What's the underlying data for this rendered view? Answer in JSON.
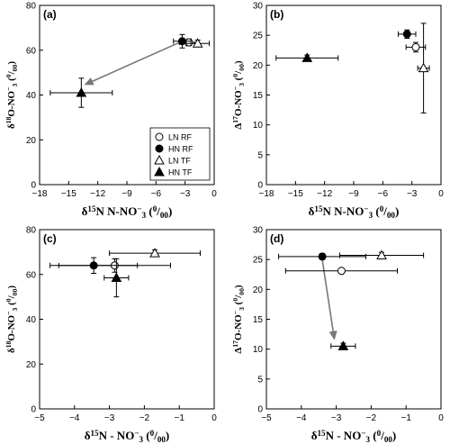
{
  "legend": {
    "entries": [
      {
        "key": "LN_RF",
        "label": "LN RF",
        "marker": "circle",
        "fill": "open"
      },
      {
        "key": "HN_RF",
        "label": "HN RF",
        "marker": "circle",
        "fill": "filled"
      },
      {
        "key": "LN_TF",
        "label": "LN TF",
        "marker": "triangle",
        "fill": "open"
      },
      {
        "key": "HN_TF",
        "label": "HN TF",
        "marker": "triangle",
        "fill": "filled"
      }
    ]
  },
  "chart_data": [
    {
      "panel": "(a)",
      "type": "scatter",
      "xlabel": "δ15N N-NO−3 (0/00)",
      "ylabel": "δ18O-NO−3 (0/00)",
      "xlim": [
        -18,
        0
      ],
      "ylim": [
        0,
        80
      ],
      "xticks": [
        -18,
        -15,
        -12,
        -9,
        -6,
        -3,
        0
      ],
      "yticks": [
        0,
        20,
        40,
        60,
        80
      ],
      "series": [
        {
          "name": "LN RF",
          "x": -2.6,
          "y": 63.5,
          "xerr": 1.0,
          "yerr": 1.5
        },
        {
          "name": "HN RF",
          "x": -3.3,
          "y": 64.0,
          "xerr": 0.9,
          "yerr": 3.0
        },
        {
          "name": "LN TF",
          "x": -1.7,
          "y": 63.0,
          "xerr": 1.2,
          "yerr": 1.5
        },
        {
          "name": "HN TF",
          "x": -13.7,
          "y": 41.0,
          "xerr": 3.2,
          "yerr": 6.5
        }
      ],
      "arrow": {
        "from": [
          -3.3,
          64.0
        ],
        "to": [
          -13.4,
          44.5
        ]
      },
      "legend": true
    },
    {
      "panel": "(b)",
      "type": "scatter",
      "xlabel": "δ15N N-NO−3 (0/00)",
      "ylabel": "Δ17O-NO−3 (0/00)",
      "xlim": [
        -18,
        0
      ],
      "ylim": [
        0,
        30
      ],
      "xticks": [
        -18,
        -15,
        -12,
        -9,
        -6,
        -3,
        0
      ],
      "yticks": [
        0,
        5,
        10,
        15,
        20,
        25,
        30
      ],
      "series": [
        {
          "name": "LN RF",
          "x": -2.6,
          "y": 23.0,
          "xerr": 1.0,
          "yerr": 0.8
        },
        {
          "name": "HN RF",
          "x": -3.5,
          "y": 25.2,
          "xerr": 0.9,
          "yerr": 0.7
        },
        {
          "name": "LN TF",
          "x": -1.8,
          "y": 19.5,
          "xerr": 0.6,
          "yerr": 7.5
        },
        {
          "name": "HN TF",
          "x": -13.8,
          "y": 21.2,
          "xerr": 3.2,
          "yerr": 0.5
        }
      ],
      "legend": false
    },
    {
      "panel": "(c)",
      "type": "scatter",
      "xlabel": "δ15N - NO−3 (0/00)",
      "ylabel": "δ18O-NO−3 (0/00)",
      "xlim": [
        -5,
        0
      ],
      "ylim": [
        0,
        80
      ],
      "xticks": [
        -5,
        -4,
        -3,
        -2,
        -1,
        0
      ],
      "yticks": [
        0,
        20,
        40,
        60,
        80
      ],
      "series": [
        {
          "name": "LN RF",
          "x": -2.85,
          "y": 64.0,
          "xerr": 1.6,
          "yerr": 3.0
        },
        {
          "name": "HN RF",
          "x": -3.45,
          "y": 64.0,
          "xerr": 1.25,
          "yerr": 3.5
        },
        {
          "name": "LN TF",
          "x": -1.7,
          "y": 69.5,
          "xerr": 1.3,
          "yerr": 1.5
        },
        {
          "name": "HN TF",
          "x": -2.8,
          "y": 58.5,
          "xerr": 0.35,
          "yerr": 8.5
        }
      ],
      "legend": false
    },
    {
      "panel": "(d)",
      "type": "scatter",
      "xlabel": "δ15N - NO−3 (0/00)",
      "ylabel": "Δ17O-NO−3 (0/00)",
      "xlim": [
        -5,
        0
      ],
      "ylim": [
        0,
        30
      ],
      "xticks": [
        -5,
        -4,
        -3,
        -2,
        -1,
        0
      ],
      "yticks": [
        0,
        5,
        10,
        15,
        20,
        25,
        30
      ],
      "series": [
        {
          "name": "LN RF",
          "x": -2.85,
          "y": 23.1,
          "xerr": 1.6,
          "yerr": 0.4
        },
        {
          "name": "HN RF",
          "x": -3.4,
          "y": 25.5,
          "xerr": 1.25,
          "yerr": 0.5
        },
        {
          "name": "LN TF",
          "x": -1.7,
          "y": 25.7,
          "xerr": 1.2,
          "yerr": 0.5
        },
        {
          "name": "HN TF",
          "x": -2.8,
          "y": 10.5,
          "xerr": 0.35,
          "yerr": 0.5
        }
      ],
      "arrow": {
        "from": [
          -3.4,
          25.0
        ],
        "to": [
          -3.05,
          11.5
        ]
      },
      "legend": false
    }
  ]
}
